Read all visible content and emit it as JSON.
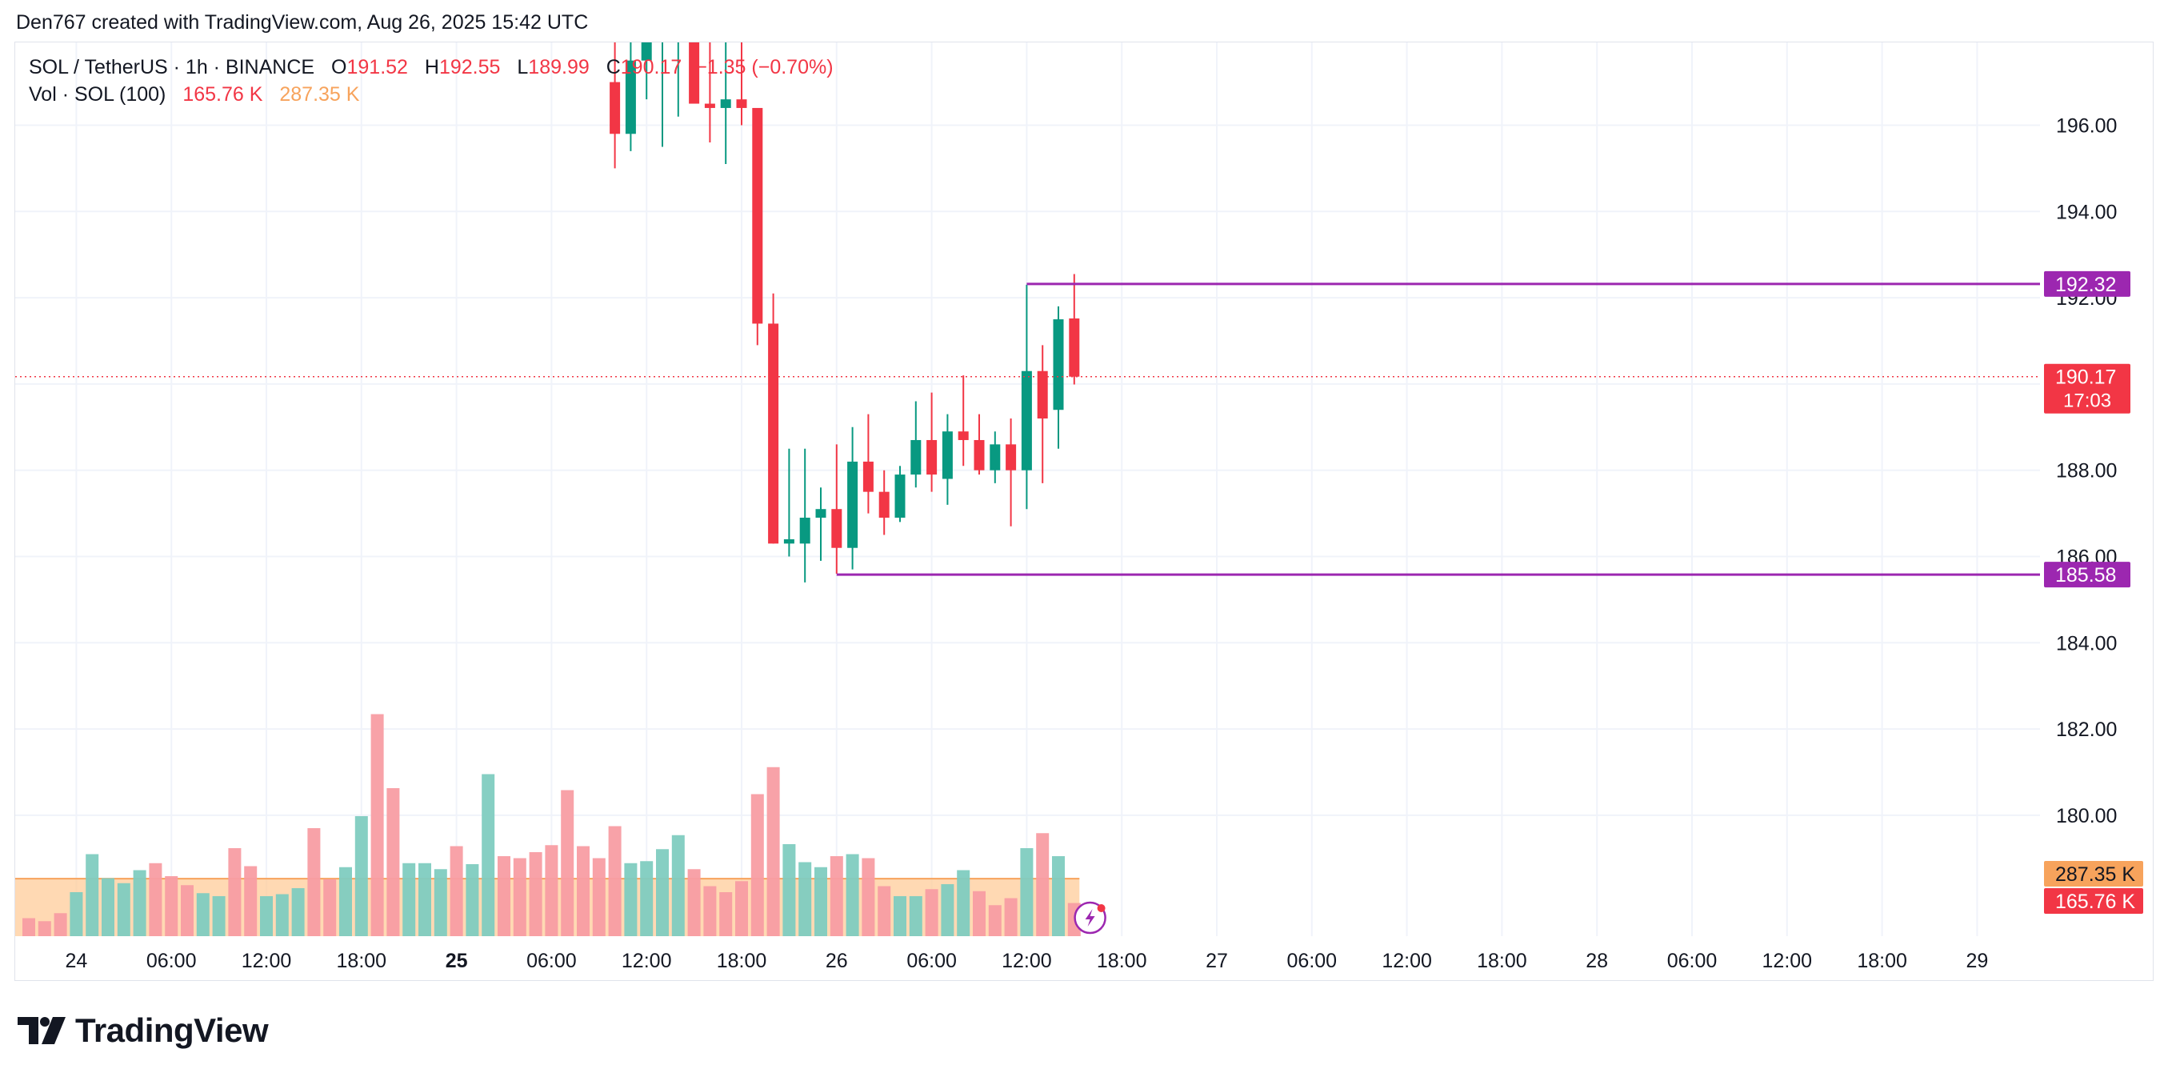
{
  "caption": "Den767 created with TradingView.com, Aug 26, 2025 15:42 UTC",
  "legend": {
    "symbol": "SOL / TetherUS · 1h · BINANCE",
    "o_label": "O",
    "o_value": "191.52",
    "h_label": "H",
    "h_value": "192.55",
    "l_label": "L",
    "l_value": "189.99",
    "c_label": "C",
    "c_value": "190.17",
    "change": "−1.35 (−0.70%)",
    "vol_label": "Vol · SOL (100)",
    "vol_value": "165.76 K",
    "vol_ma_value": "287.35 K"
  },
  "brand": {
    "name": "TradingView"
  },
  "colors": {
    "up": "#089981",
    "down": "#f23645",
    "level": "#9c27b0",
    "vol_ma": "#f7a35c",
    "grid": "#f0f3fa",
    "axis_text": "#131722"
  },
  "chart_data": {
    "type": "candlestick",
    "symbol": "SOL / TetherUS",
    "interval": "1h",
    "exchange": "BINANCE",
    "y_range": [
      177.6,
      198.4
    ],
    "y_ticks": [
      "196.00",
      "194.00",
      "192.00",
      "190.00",
      "188.00",
      "186.00",
      "184.00",
      "182.00",
      "180.00"
    ],
    "y_tick_values": [
      196,
      194,
      192,
      190,
      188,
      186,
      184,
      182,
      180
    ],
    "x_ticks": [
      {
        "i": 3,
        "label": "24",
        "bold": false
      },
      {
        "i": 9,
        "label": "06:00",
        "bold": false
      },
      {
        "i": 15,
        "label": "12:00",
        "bold": false
      },
      {
        "i": 21,
        "label": "18:00",
        "bold": false
      },
      {
        "i": 27,
        "label": "25",
        "bold": true
      },
      {
        "i": 33,
        "label": "06:00",
        "bold": false
      },
      {
        "i": 39,
        "label": "12:00",
        "bold": false
      },
      {
        "i": 45,
        "label": "18:00",
        "bold": false
      },
      {
        "i": 51,
        "label": "26",
        "bold": false
      },
      {
        "i": 57,
        "label": "06:00",
        "bold": false
      },
      {
        "i": 63,
        "label": "12:00",
        "bold": false
      },
      {
        "i": 69,
        "label": "18:00",
        "bold": false
      },
      {
        "i": 75,
        "label": "27",
        "bold": false
      },
      {
        "i": 81,
        "label": "06:00",
        "bold": false
      },
      {
        "i": 87,
        "label": "12:00",
        "bold": false
      },
      {
        "i": 93,
        "label": "18:00",
        "bold": false
      },
      {
        "i": 99,
        "label": "28",
        "bold": false
      },
      {
        "i": 105,
        "label": "06:00",
        "bold": false
      },
      {
        "i": 111,
        "label": "12:00",
        "bold": false
      },
      {
        "i": 117,
        "label": "18:00",
        "bold": false
      },
      {
        "i": 123,
        "label": "29",
        "bold": false
      }
    ],
    "candles": [
      {
        "i": 37,
        "o": 197.0,
        "h": 199.0,
        "l": 195.0,
        "c": 195.8
      },
      {
        "i": 38,
        "o": 195.8,
        "h": 199.0,
        "l": 195.4,
        "c": 197.5
      },
      {
        "i": 39,
        "o": 197.5,
        "h": 199.0,
        "l": 196.6,
        "c": 198.0
      },
      {
        "i": 40,
        "o": 198.0,
        "h": 199.0,
        "l": 195.5,
        "c": 198.5
      },
      {
        "i": 41,
        "o": 198.5,
        "h": 199.0,
        "l": 196.2,
        "c": 198.5
      },
      {
        "i": 42,
        "o": 198.5,
        "h": 199.0,
        "l": 196.6,
        "c": 196.5
      },
      {
        "i": 43,
        "o": 196.5,
        "h": 198.0,
        "l": 195.6,
        "c": 196.4
      },
      {
        "i": 44,
        "o": 196.4,
        "h": 198.0,
        "l": 195.1,
        "c": 196.6
      },
      {
        "i": 45,
        "o": 196.6,
        "h": 198.0,
        "l": 196.0,
        "c": 196.4
      },
      {
        "i": 46,
        "o": 196.4,
        "h": 196.4,
        "l": 190.9,
        "c": 191.4
      },
      {
        "i": 47,
        "o": 191.4,
        "h": 192.1,
        "l": 186.3,
        "c": 186.3
      },
      {
        "i": 48,
        "o": 186.3,
        "h": 188.5,
        "l": 186.0,
        "c": 186.4
      },
      {
        "i": 49,
        "o": 186.3,
        "h": 188.5,
        "l": 185.4,
        "c": 186.9
      },
      {
        "i": 50,
        "o": 186.9,
        "h": 187.6,
        "l": 185.9,
        "c": 187.1
      },
      {
        "i": 51,
        "o": 187.1,
        "h": 188.6,
        "l": 185.6,
        "c": 186.2
      },
      {
        "i": 52,
        "o": 186.2,
        "h": 189.0,
        "l": 185.7,
        "c": 188.2
      },
      {
        "i": 53,
        "o": 188.2,
        "h": 189.3,
        "l": 187.0,
        "c": 187.5
      },
      {
        "i": 54,
        "o": 187.5,
        "h": 188.0,
        "l": 186.5,
        "c": 186.9
      },
      {
        "i": 55,
        "o": 186.9,
        "h": 188.1,
        "l": 186.8,
        "c": 187.9
      },
      {
        "i": 56,
        "o": 187.9,
        "h": 189.6,
        "l": 187.6,
        "c": 188.7
      },
      {
        "i": 57,
        "o": 188.7,
        "h": 189.8,
        "l": 187.5,
        "c": 187.9
      },
      {
        "i": 58,
        "o": 187.8,
        "h": 189.3,
        "l": 187.2,
        "c": 188.9
      },
      {
        "i": 59,
        "o": 188.9,
        "h": 190.2,
        "l": 188.1,
        "c": 188.7
      },
      {
        "i": 60,
        "o": 188.7,
        "h": 189.3,
        "l": 187.9,
        "c": 188.0
      },
      {
        "i": 61,
        "o": 188.0,
        "h": 188.9,
        "l": 187.7,
        "c": 188.6
      },
      {
        "i": 62,
        "o": 188.6,
        "h": 189.2,
        "l": 186.7,
        "c": 188.0
      },
      {
        "i": 63,
        "o": 188.0,
        "h": 192.3,
        "l": 187.1,
        "c": 190.3
      },
      {
        "i": 64,
        "o": 190.3,
        "h": 190.9,
        "l": 187.7,
        "c": 189.2
      },
      {
        "i": 65,
        "o": 189.4,
        "h": 191.8,
        "l": 188.5,
        "c": 191.5
      },
      {
        "i": 66,
        "o": 191.52,
        "h": 192.55,
        "l": 189.99,
        "c": 190.17
      }
    ],
    "volume": [
      {
        "i": 0,
        "up": false,
        "v": 90
      },
      {
        "i": 1,
        "up": false,
        "v": 75
      },
      {
        "i": 2,
        "up": false,
        "v": 115
      },
      {
        "i": 3,
        "up": true,
        "v": 220
      },
      {
        "i": 4,
        "up": true,
        "v": 410
      },
      {
        "i": 5,
        "up": true,
        "v": 290
      },
      {
        "i": 6,
        "up": true,
        "v": 265
      },
      {
        "i": 7,
        "up": true,
        "v": 330
      },
      {
        "i": 8,
        "up": false,
        "v": 365
      },
      {
        "i": 9,
        "up": false,
        "v": 300
      },
      {
        "i": 10,
        "up": false,
        "v": 255
      },
      {
        "i": 11,
        "up": true,
        "v": 215
      },
      {
        "i": 12,
        "up": true,
        "v": 200
      },
      {
        "i": 13,
        "up": false,
        "v": 440
      },
      {
        "i": 14,
        "up": false,
        "v": 350
      },
      {
        "i": 15,
        "up": true,
        "v": 200
      },
      {
        "i": 16,
        "up": true,
        "v": 210
      },
      {
        "i": 17,
        "up": true,
        "v": 240
      },
      {
        "i": 18,
        "up": false,
        "v": 540
      },
      {
        "i": 19,
        "up": false,
        "v": 285
      },
      {
        "i": 20,
        "up": true,
        "v": 345
      },
      {
        "i": 21,
        "up": true,
        "v": 600
      },
      {
        "i": 22,
        "up": false,
        "v": 1110
      },
      {
        "i": 23,
        "up": false,
        "v": 740
      },
      {
        "i": 24,
        "up": true,
        "v": 365
      },
      {
        "i": 25,
        "up": true,
        "v": 365
      },
      {
        "i": 26,
        "up": true,
        "v": 335
      },
      {
        "i": 27,
        "up": false,
        "v": 450
      },
      {
        "i": 28,
        "up": true,
        "v": 360
      },
      {
        "i": 29,
        "up": true,
        "v": 810
      },
      {
        "i": 30,
        "up": false,
        "v": 400
      },
      {
        "i": 31,
        "up": false,
        "v": 390
      },
      {
        "i": 32,
        "up": false,
        "v": 420
      },
      {
        "i": 33,
        "up": false,
        "v": 455
      },
      {
        "i": 34,
        "up": false,
        "v": 730
      },
      {
        "i": 35,
        "up": false,
        "v": 450
      },
      {
        "i": 36,
        "up": false,
        "v": 390
      },
      {
        "i": 37,
        "up": false,
        "v": 550
      },
      {
        "i": 38,
        "up": true,
        "v": 365
      },
      {
        "i": 39,
        "up": true,
        "v": 375
      },
      {
        "i": 40,
        "up": true,
        "v": 435
      },
      {
        "i": 41,
        "up": true,
        "v": 505
      },
      {
        "i": 42,
        "up": false,
        "v": 335
      },
      {
        "i": 43,
        "up": false,
        "v": 250
      },
      {
        "i": 44,
        "up": false,
        "v": 220
      },
      {
        "i": 45,
        "up": false,
        "v": 275
      },
      {
        "i": 46,
        "up": false,
        "v": 710
      },
      {
        "i": 47,
        "up": false,
        "v": 845
      },
      {
        "i": 48,
        "up": true,
        "v": 460
      },
      {
        "i": 49,
        "up": true,
        "v": 370
      },
      {
        "i": 50,
        "up": true,
        "v": 345
      },
      {
        "i": 51,
        "up": false,
        "v": 400
      },
      {
        "i": 52,
        "up": true,
        "v": 410
      },
      {
        "i": 53,
        "up": false,
        "v": 390
      },
      {
        "i": 54,
        "up": false,
        "v": 250
      },
      {
        "i": 55,
        "up": true,
        "v": 200
      },
      {
        "i": 56,
        "up": true,
        "v": 200
      },
      {
        "i": 57,
        "up": false,
        "v": 235
      },
      {
        "i": 58,
        "up": true,
        "v": 260
      },
      {
        "i": 59,
        "up": true,
        "v": 330
      },
      {
        "i": 60,
        "up": false,
        "v": 225
      },
      {
        "i": 61,
        "up": false,
        "v": 155
      },
      {
        "i": 62,
        "up": false,
        "v": 190
      },
      {
        "i": 63,
        "up": true,
        "v": 440
      },
      {
        "i": 64,
        "up": false,
        "v": 515
      },
      {
        "i": 65,
        "up": true,
        "v": 400
      },
      {
        "i": 66,
        "up": false,
        "v": 165.76
      }
    ],
    "volume_ma": 287.35,
    "volume_max": 1400,
    "last_price": 190.17,
    "countdown": "17:03",
    "price_label": "190.17",
    "vol_axis_labels": {
      "ma": "287.35 K",
      "vol": "165.76 K"
    },
    "levels": [
      {
        "price": 192.32,
        "label": "192.32",
        "from_i": 63
      },
      {
        "price": 185.58,
        "label": "185.58",
        "from_i": 51
      }
    ]
  }
}
